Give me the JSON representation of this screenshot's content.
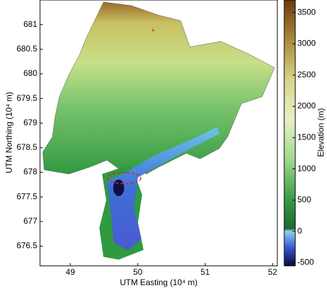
{
  "chart_data": {
    "type": "map",
    "x_label": "UTM Easting (10⁴ m)",
    "y_label": "UTM Northing (10⁴ m)",
    "colorbar_label": "Elevation (m)",
    "xlim": [
      48.55,
      52.07
    ],
    "xticks": [
      49,
      50,
      51,
      52
    ],
    "ylim": [
      676.1,
      681.5
    ],
    "yticks": [
      676.5,
      677,
      677.5,
      678,
      678.5,
      679,
      679.5,
      680,
      680.5,
      681
    ],
    "clim": [
      -550,
      3700
    ],
    "cticks": [
      -500,
      0,
      500,
      1000,
      1500,
      2000,
      2500,
      3000,
      3500
    ]
  }
}
